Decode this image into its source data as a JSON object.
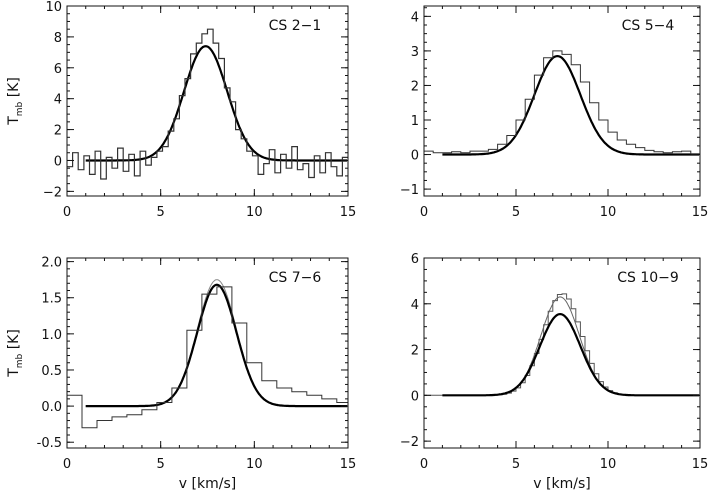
{
  "figure": {
    "xlabel": "v [km/s]",
    "ylabel_main": "T",
    "ylabel_sub": "mb",
    "ylabel_unit": "[K]"
  },
  "chart_data": [
    {
      "type": "line",
      "label": "CS 2−1",
      "xlim": [
        0,
        15
      ],
      "ylim": [
        -2.3,
        10
      ],
      "xticks": [
        0,
        5,
        10,
        15
      ],
      "yticks": [
        -2,
        0,
        2,
        4,
        6,
        8,
        10
      ],
      "show_xlabel": false,
      "show_ylabel": true,
      "x_minor": 1,
      "y_minor": 0.5,
      "series": [
        {
          "style": "fit-thick",
          "color": "#000000",
          "model": "gaussian",
          "amplitude": 7.4,
          "center": 7.4,
          "sigma": 1.15,
          "baseline": 0
        },
        {
          "style": "noisy-step",
          "color": "#333333",
          "x": [
            0.0,
            0.3,
            0.6,
            0.9,
            1.2,
            1.5,
            1.8,
            2.1,
            2.4,
            2.7,
            3.0,
            3.3,
            3.6,
            3.9,
            4.2,
            4.5,
            4.8,
            5.1,
            5.4,
            5.7,
            6.0,
            6.3,
            6.6,
            6.9,
            7.2,
            7.5,
            7.8,
            8.1,
            8.4,
            8.7,
            9.0,
            9.3,
            9.6,
            9.9,
            10.2,
            10.5,
            10.8,
            11.1,
            11.4,
            11.7,
            12.0,
            12.3,
            12.6,
            12.9,
            13.2,
            13.5,
            13.8,
            14.1,
            14.4,
            14.7,
            15.0
          ],
          "y": [
            -0.4,
            0.5,
            -0.6,
            0.3,
            -0.9,
            0.6,
            -1.2,
            0.2,
            -0.5,
            0.8,
            -0.7,
            0.4,
            -1.0,
            0.6,
            -0.3,
            0.2,
            0.6,
            0.9,
            1.9,
            2.7,
            4.2,
            5.3,
            6.9,
            7.6,
            8.2,
            8.5,
            7.6,
            6.6,
            4.7,
            3.8,
            2.0,
            1.4,
            0.6,
            0.3,
            -0.9,
            -0.2,
            0.7,
            -0.8,
            0.4,
            -0.5,
            0.9,
            -0.6,
            -0.2,
            -1.1,
            0.3,
            -0.8,
            0.5,
            -0.4,
            -1.0,
            0.2,
            -0.6
          ]
        }
      ]
    },
    {
      "type": "line",
      "label": "CS 5−4",
      "xlim": [
        0,
        15
      ],
      "ylim": [
        -1.2,
        4.3
      ],
      "xticks": [
        0,
        5,
        10,
        15
      ],
      "yticks": [
        -1,
        0,
        1,
        2,
        3,
        4
      ],
      "show_xlabel": false,
      "show_ylabel": false,
      "x_minor": 1,
      "y_minor": 0.25,
      "series": [
        {
          "style": "fit-thick",
          "color": "#000000",
          "model": "gaussian",
          "amplitude": 2.85,
          "center": 7.25,
          "sigma": 1.25,
          "baseline": 0
        },
        {
          "style": "step",
          "color": "#333333",
          "x": [
            0.0,
            0.5,
            1.0,
            1.5,
            2.0,
            2.5,
            3.0,
            3.5,
            4.0,
            4.5,
            5.0,
            5.5,
            6.0,
            6.5,
            7.0,
            7.5,
            8.0,
            8.5,
            9.0,
            9.5,
            10.0,
            10.5,
            11.0,
            11.5,
            12.0,
            12.5,
            13.0,
            13.5,
            14.0,
            14.5,
            15.0
          ],
          "y": [
            0.1,
            0.05,
            0.05,
            0.08,
            0.05,
            0.1,
            0.1,
            0.15,
            0.3,
            0.55,
            1.0,
            1.6,
            2.3,
            2.8,
            3.0,
            2.9,
            2.6,
            2.1,
            1.5,
            1.0,
            0.65,
            0.42,
            0.3,
            0.2,
            0.12,
            0.08,
            0.05,
            0.08,
            0.1,
            0.02,
            0.0
          ]
        }
      ]
    },
    {
      "type": "line",
      "label": "CS 7−6",
      "xlim": [
        0,
        15
      ],
      "ylim": [
        -0.58,
        2.05
      ],
      "xticks": [
        0,
        5,
        10,
        15
      ],
      "yticks": [
        -0.5,
        0.0,
        0.5,
        1.0,
        1.5,
        2.0
      ],
      "ytick_labels": [
        "-0.5",
        "0.0",
        "0.5",
        "1.0",
        "1.5",
        "2.0"
      ],
      "show_xlabel": true,
      "show_ylabel": true,
      "x_minor": 1,
      "y_minor": 0.1,
      "series": [
        {
          "style": "fit-thin",
          "color": "#888888",
          "model": "gaussian",
          "amplitude": 1.75,
          "center": 8.0,
          "sigma": 1.05,
          "baseline": 0
        },
        {
          "style": "fit-thick",
          "color": "#000000",
          "model": "gaussian",
          "amplitude": 1.68,
          "center": 8.0,
          "sigma": 1.05,
          "baseline": 0
        },
        {
          "style": "step",
          "color": "#333333",
          "x": [
            0.0,
            0.8,
            1.6,
            2.4,
            3.2,
            4.0,
            4.8,
            5.6,
            6.4,
            7.2,
            8.0,
            8.8,
            9.6,
            10.4,
            11.2,
            12.0,
            12.8,
            13.6,
            14.4,
            15.0
          ],
          "y": [
            0.15,
            -0.3,
            -0.2,
            -0.15,
            -0.12,
            -0.05,
            0.05,
            0.25,
            1.05,
            1.55,
            1.65,
            1.15,
            0.6,
            0.35,
            0.25,
            0.2,
            0.15,
            0.1,
            0.05,
            0.05
          ]
        }
      ]
    },
    {
      "type": "line",
      "label": "CS 10−9",
      "xlim": [
        0,
        15
      ],
      "ylim": [
        -2.3,
        6
      ],
      "xticks": [
        0,
        5,
        10,
        15
      ],
      "yticks": [
        -2,
        0,
        2,
        4,
        6
      ],
      "show_xlabel": true,
      "show_ylabel": false,
      "x_minor": 1,
      "y_minor": 0.5,
      "series": [
        {
          "style": "step",
          "color": "#555555",
          "model": "gaussian-step",
          "amplitude": 4.45,
          "center": 7.4,
          "sigma": 1.05,
          "step": 0.25,
          "baseline": 0
        },
        {
          "style": "fit-thin",
          "color": "#666666",
          "model": "gaussian",
          "amplitude": 4.3,
          "center": 7.4,
          "sigma": 1.05,
          "baseline": 0
        },
        {
          "style": "fit-thick",
          "color": "#000000",
          "model": "gaussian",
          "amplitude": 3.55,
          "center": 7.4,
          "sigma": 1.1,
          "baseline": 0
        }
      ]
    }
  ]
}
